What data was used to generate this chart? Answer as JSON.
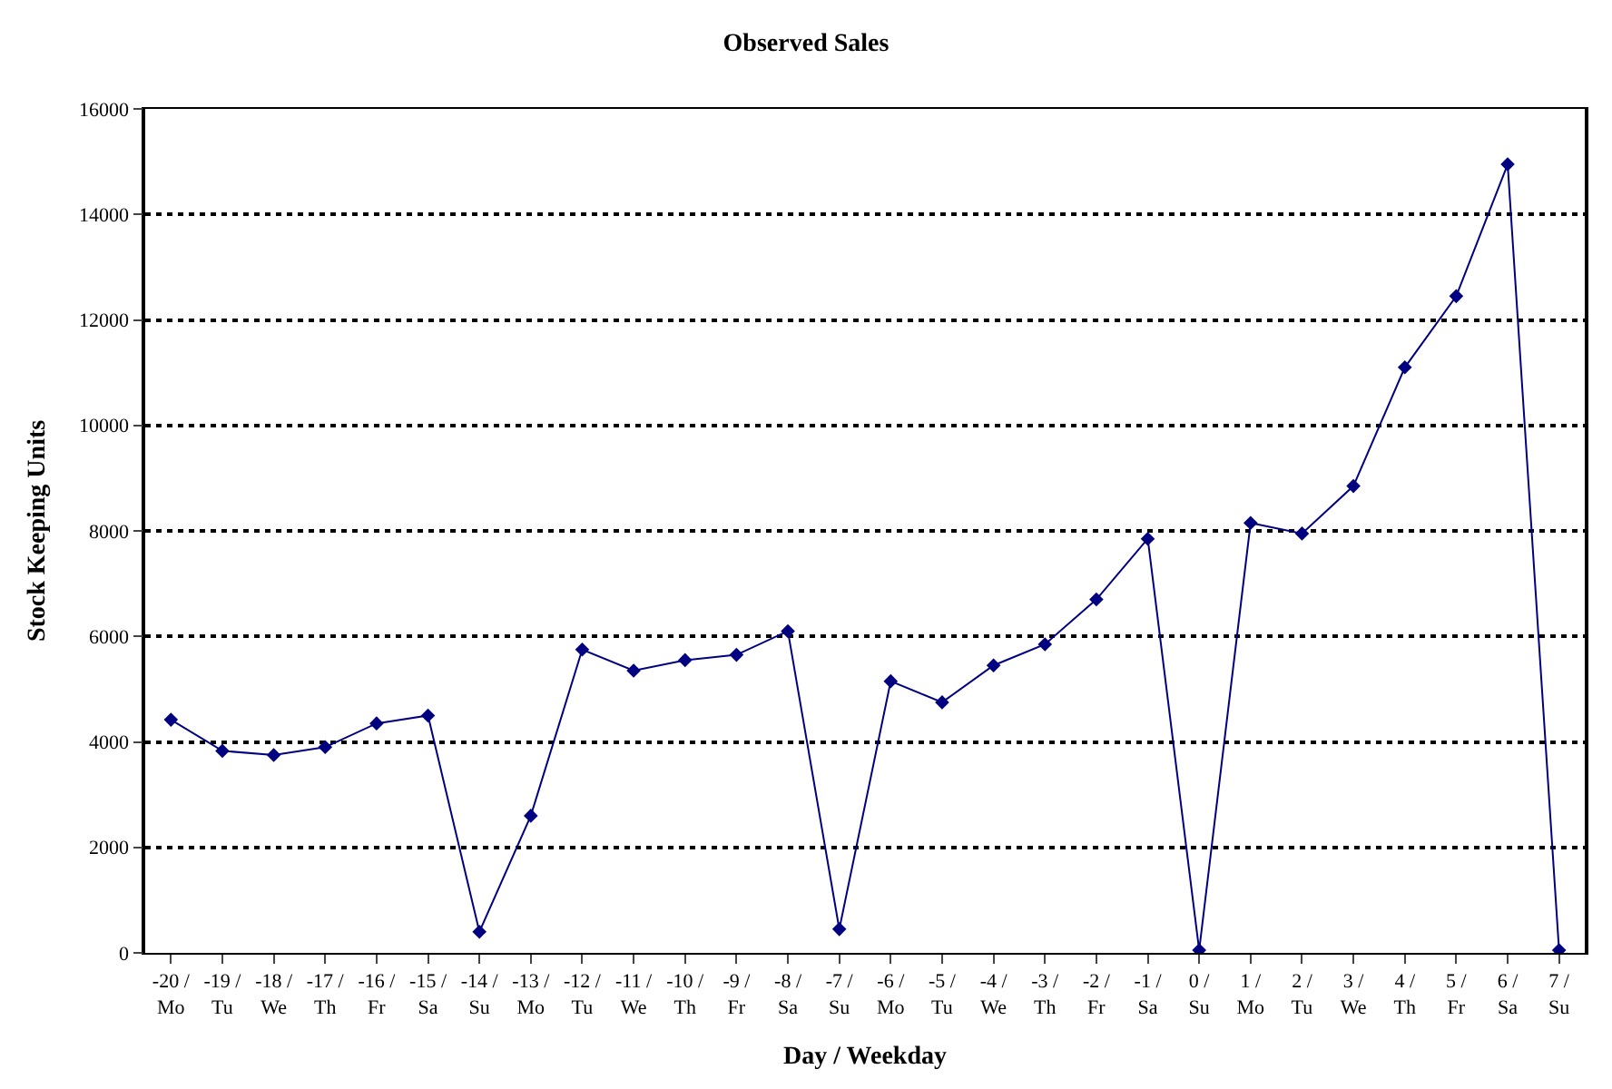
{
  "chart_data": {
    "type": "line",
    "title": "Observed Sales",
    "xlabel": "Day / Weekday",
    "ylabel": "Stock Keeping Units",
    "categories": [
      "-20 /\nMo",
      "-19 /\nTu",
      "-18 /\nWe",
      "-17 /\nTh",
      "-16 /\nFr",
      "-15 /\nSa",
      "-14 /\nSu",
      "-13 /\nMo",
      "-12 /\nTu",
      "-11 /\nWe",
      "-10 /\nTh",
      "-9 /\nFr",
      "-8 /\nSa",
      "-7 /\nSu",
      "-6 /\nMo",
      "-5 /\nTu",
      "-4 /\nWe",
      "-3 /\nTh",
      "-2 /\nFr",
      "-1 /\nSa",
      "0 /\nSu",
      "1 /\nMo",
      "2 /\nTu",
      "3 /\nWe",
      "4 /\nTh",
      "5 /\nFr",
      "6 /\nSa",
      "7 /\nSu"
    ],
    "series": [
      {
        "color": "#000080",
        "values": [
          4420,
          3830,
          3750,
          3900,
          4350,
          4500,
          400,
          2600,
          5750,
          5350,
          5550,
          5650,
          6100,
          450,
          5150,
          4750,
          5450,
          5850,
          6700,
          7850,
          50,
          8150,
          7950,
          8850,
          11100,
          12450,
          14950,
          50
        ]
      }
    ],
    "ylim": [
      0,
      16000
    ],
    "yticks": [
      0,
      2000,
      4000,
      6000,
      8000,
      10000,
      12000,
      14000,
      16000
    ],
    "grid": "y",
    "marker": "diamond",
    "line_style": "solid"
  }
}
